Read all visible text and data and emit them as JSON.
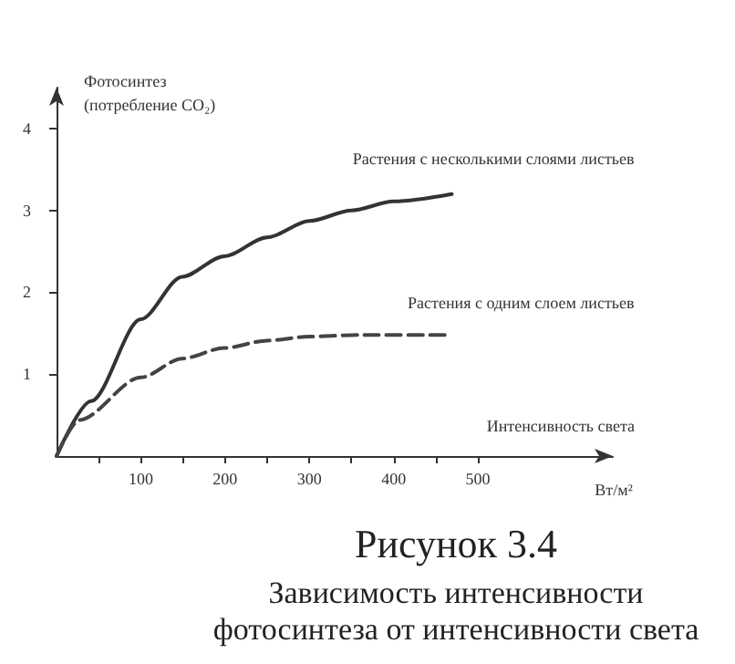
{
  "chart_data": {
    "type": "line",
    "title": "Рисунок 3.4",
    "subtitle": "Зависимость интенсивности\nфотосинтеза от интенсивности света",
    "xlabel": "Интенсивность света",
    "ylabel": "Фотосинтез\n(потребление CO₂)",
    "annotations": [
      "Вт/м²"
    ],
    "series": [
      {
        "name": "Растения с несколькими слоями листьев",
        "color": "#333333",
        "line_style": "solid",
        "x": [
          0,
          41,
          100,
          149,
          199,
          250,
          300,
          350,
          400,
          469
        ],
        "values": [
          0,
          0.67,
          1.67,
          2.19,
          2.44,
          2.67,
          2.87,
          3.0,
          3.11,
          3.2
        ]
      },
      {
        "name": "Растения с одним слоем листьев",
        "color": "#444444",
        "line_style": "dashed",
        "x": [
          0,
          27,
          100,
          149,
          199,
          250,
          300,
          365,
          469
        ],
        "values": [
          0,
          0.44,
          0.96,
          1.19,
          1.32,
          1.41,
          1.46,
          1.48,
          1.48
        ]
      }
    ],
    "xlim": [
      0,
      660
    ],
    "xticks": [
      {
        "value": 50,
        "label": null
      },
      100,
      {
        "value": 150,
        "label": null
      },
      200,
      {
        "value": 250,
        "label": null
      },
      300,
      {
        "value": 350,
        "label": null
      },
      400,
      {
        "value": 450,
        "label": null
      },
      500
    ],
    "ylim": [
      0,
      4.5
    ],
    "yticks": [
      1,
      2,
      3,
      4
    ],
    "grid": false,
    "legend": false,
    "marker": "none"
  }
}
